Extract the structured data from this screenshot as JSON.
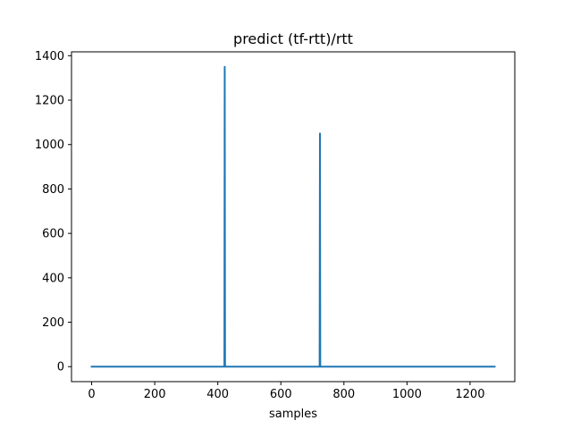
{
  "chart_data": {
    "type": "line",
    "title": "predict (tf-rtt)/rtt",
    "xlabel": "samples",
    "ylabel": "",
    "xlim": [
      -63.9,
      1341.9
    ],
    "ylim": [
      -67.5,
      1417.5
    ],
    "xticks": [
      0,
      200,
      400,
      600,
      800,
      1000,
      1200
    ],
    "yticks": [
      0,
      200,
      400,
      600,
      800,
      1000,
      1200,
      1400
    ],
    "grid": false,
    "legend": "none",
    "series": [
      {
        "color": "#1f77b4",
        "x": [
          0,
          421,
          422,
          423,
          723,
          724,
          725,
          1278
        ],
        "y": [
          0,
          0,
          1350,
          0,
          0,
          1050,
          0,
          0
        ]
      }
    ]
  }
}
